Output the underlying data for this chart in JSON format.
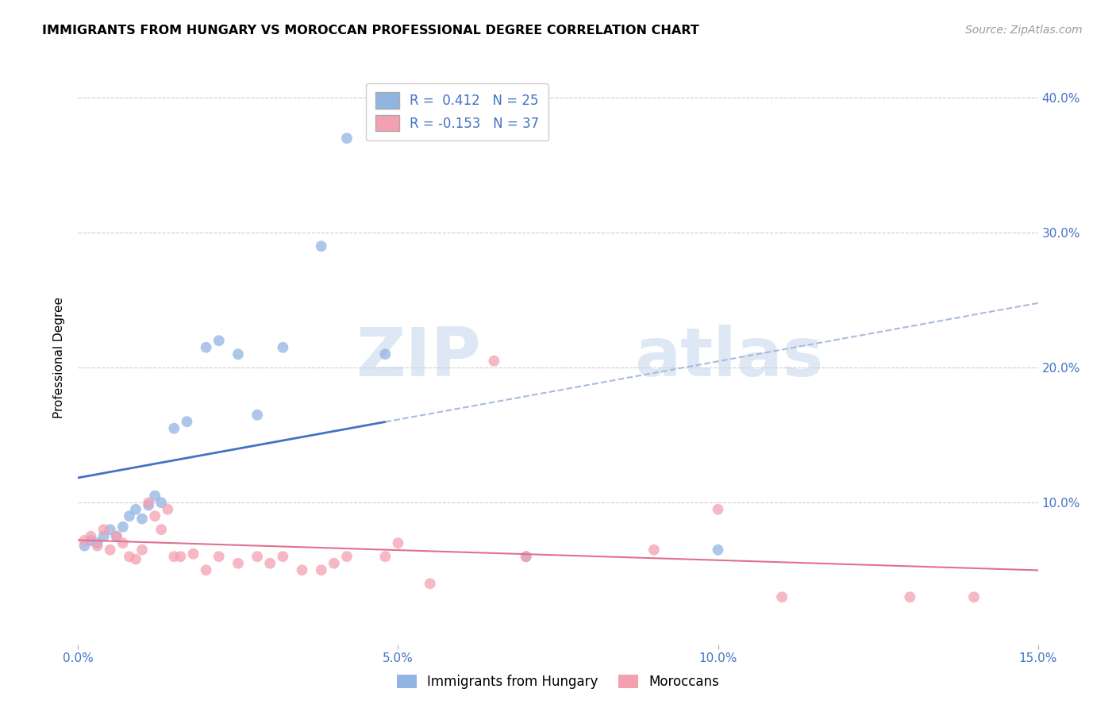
{
  "title": "IMMIGRANTS FROM HUNGARY VS MOROCCAN PROFESSIONAL DEGREE CORRELATION CHART",
  "source": "Source: ZipAtlas.com",
  "ylabel": "Professional Degree",
  "xlabel_legend1": "Immigrants from Hungary",
  "xlabel_legend2": "Moroccans",
  "xlim": [
    0.0,
    0.15
  ],
  "ylim": [
    -0.005,
    0.42
  ],
  "xticks": [
    0.0,
    0.05,
    0.1,
    0.15
  ],
  "yticks": [
    0.1,
    0.2,
    0.3,
    0.4
  ],
  "ytick_labels": [
    "10.0%",
    "20.0%",
    "30.0%",
    "40.0%"
  ],
  "xtick_labels": [
    "0.0%",
    "5.0%",
    "10.0%",
    "15.0%"
  ],
  "watermark_zip": "ZIP",
  "watermark_atlas": "atlas",
  "blue_R": 0.412,
  "blue_N": 25,
  "pink_R": -0.153,
  "pink_N": 37,
  "blue_color": "#92B4E3",
  "pink_color": "#F4A0B0",
  "blue_line_color": "#4472C4",
  "pink_line_color": "#E07090",
  "dashed_line_color": "#AABBDD",
  "blue_scatter_x": [
    0.001,
    0.002,
    0.003,
    0.004,
    0.005,
    0.006,
    0.007,
    0.008,
    0.009,
    0.01,
    0.011,
    0.012,
    0.013,
    0.015,
    0.017,
    0.02,
    0.022,
    0.025,
    0.028,
    0.032,
    0.038,
    0.042,
    0.048,
    0.07,
    0.1
  ],
  "blue_scatter_y": [
    0.068,
    0.072,
    0.07,
    0.075,
    0.08,
    0.075,
    0.082,
    0.09,
    0.095,
    0.088,
    0.098,
    0.105,
    0.1,
    0.155,
    0.16,
    0.215,
    0.22,
    0.21,
    0.165,
    0.215,
    0.29,
    0.37,
    0.21,
    0.06,
    0.065
  ],
  "pink_scatter_x": [
    0.001,
    0.002,
    0.003,
    0.004,
    0.005,
    0.006,
    0.007,
    0.008,
    0.009,
    0.01,
    0.011,
    0.012,
    0.013,
    0.014,
    0.015,
    0.016,
    0.018,
    0.02,
    0.022,
    0.025,
    0.028,
    0.03,
    0.032,
    0.035,
    0.038,
    0.04,
    0.042,
    0.048,
    0.05,
    0.055,
    0.065,
    0.07,
    0.09,
    0.1,
    0.11,
    0.13,
    0.14
  ],
  "pink_scatter_y": [
    0.072,
    0.075,
    0.068,
    0.08,
    0.065,
    0.075,
    0.07,
    0.06,
    0.058,
    0.065,
    0.1,
    0.09,
    0.08,
    0.095,
    0.06,
    0.06,
    0.062,
    0.05,
    0.06,
    0.055,
    0.06,
    0.055,
    0.06,
    0.05,
    0.05,
    0.055,
    0.06,
    0.06,
    0.07,
    0.04,
    0.205,
    0.06,
    0.065,
    0.095,
    0.03,
    0.03,
    0.03
  ]
}
